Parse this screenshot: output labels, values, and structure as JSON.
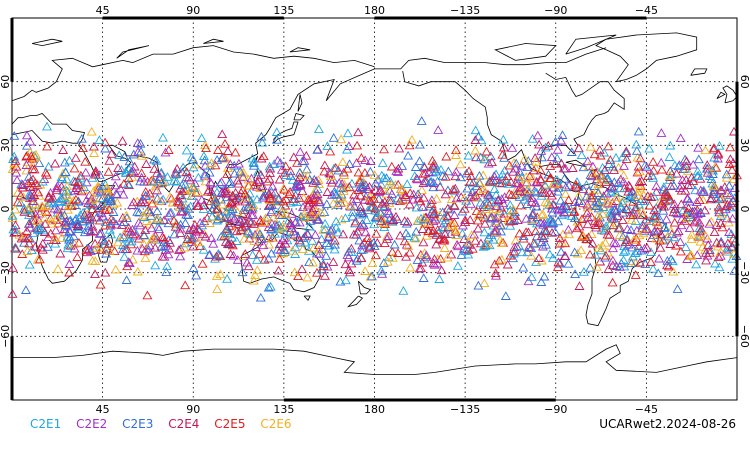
{
  "map": {
    "projection": "cylindrical equidistant",
    "lon_range": [
      0,
      360
    ],
    "lat_range": [
      -90,
      90
    ],
    "grid": "dotted",
    "coastlines": true,
    "marker_shape": "open-triangle",
    "observation_lat_band": [
      -45,
      45
    ],
    "top_ticks": [
      {
        "lon": 45,
        "label": "45"
      },
      {
        "lon": 90,
        "label": "90"
      },
      {
        "lon": 135,
        "label": "135"
      },
      {
        "lon": 180,
        "label": "180"
      },
      {
        "lon": 225,
        "label": "−135"
      },
      {
        "lon": 270,
        "label": "−90"
      },
      {
        "lon": 315,
        "label": "−45"
      }
    ],
    "bottom_ticks": [
      {
        "lon": 45,
        "label": "45"
      },
      {
        "lon": 90,
        "label": "90"
      },
      {
        "lon": 135,
        "label": "135"
      },
      {
        "lon": 180,
        "label": "180"
      },
      {
        "lon": 225,
        "label": "−135"
      },
      {
        "lon": 270,
        "label": "−90"
      },
      {
        "lon": 315,
        "label": "−45"
      }
    ],
    "lat_ticks": [
      {
        "lat": 60,
        "label": "60"
      },
      {
        "lat": 30,
        "label": "30"
      },
      {
        "lat": 0,
        "label": "0"
      },
      {
        "lat": -30,
        "label": "−30"
      },
      {
        "lat": -60,
        "label": "−60"
      }
    ]
  },
  "legend": [
    {
      "label": "C2E1",
      "color": "#1ea7e1"
    },
    {
      "label": "C2E2",
      "color": "#a22fc8"
    },
    {
      "label": "C2E3",
      "color": "#2f6fd8"
    },
    {
      "label": "C2E4",
      "color": "#c2185b"
    },
    {
      "label": "C2E5",
      "color": "#e11d1d"
    },
    {
      "label": "C2E6",
      "color": "#f2b01e"
    }
  ],
  "footer": {
    "label": "UCARwet2.2024-08-26"
  }
}
